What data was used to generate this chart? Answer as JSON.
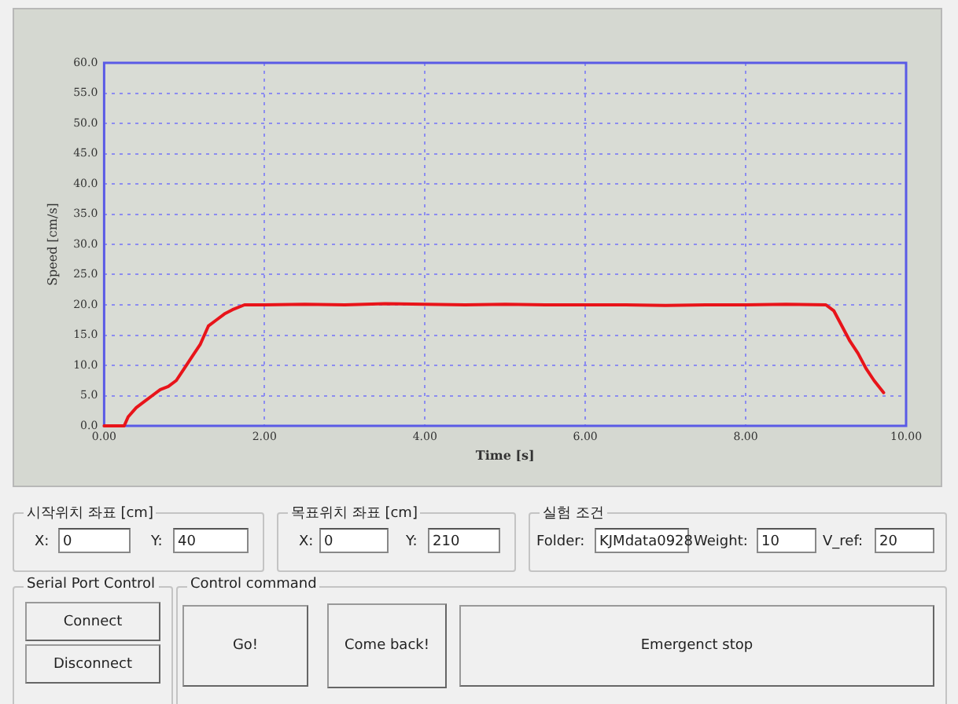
{
  "chart_data": {
    "type": "line",
    "xlabel": "Time [s]",
    "ylabel": "Speed [cm/s]",
    "x": [
      0,
      0.25,
      0.3,
      0.4,
      0.5,
      0.6,
      0.7,
      0.8,
      0.9,
      1.0,
      1.1,
      1.2,
      1.3,
      1.4,
      1.5,
      1.6,
      1.75,
      2.0,
      2.5,
      3.0,
      3.5,
      4.0,
      4.5,
      5.0,
      5.5,
      6.0,
      6.5,
      7.0,
      7.5,
      8.0,
      8.5,
      9.0,
      9.1,
      9.2,
      9.3,
      9.4,
      9.5,
      9.6,
      9.72
    ],
    "series": [
      {
        "color": "#e8141a",
        "values": [
          0,
          0,
          1.5,
          3,
          4,
          5,
          6,
          6.5,
          7.5,
          9.5,
          11.5,
          13.5,
          16.5,
          17.5,
          18.5,
          19.2,
          20,
          20,
          20.1,
          20,
          20.2,
          20.1,
          20,
          20.1,
          20,
          20,
          20,
          19.9,
          20,
          20,
          20.1,
          20,
          19,
          16.5,
          14,
          12,
          9.5,
          7.5,
          5.5
        ]
      }
    ],
    "xlim": [
      0,
      10
    ],
    "xticks": [
      {
        "value": 0,
        "label": "0.00"
      },
      {
        "value": 2,
        "label": "2.00"
      },
      {
        "value": 4,
        "label": "4.00"
      },
      {
        "value": 6,
        "label": "6.00"
      },
      {
        "value": 8,
        "label": "8.00"
      },
      {
        "value": 10,
        "label": "10.00"
      }
    ],
    "ylim": [
      0,
      60
    ],
    "yticks": [
      {
        "value": 0,
        "label": "0.0"
      },
      {
        "value": 5,
        "label": "5.0"
      },
      {
        "value": 10,
        "label": "10.0"
      },
      {
        "value": 15,
        "label": "15.0"
      },
      {
        "value": 20,
        "label": "20.0"
      },
      {
        "value": 25,
        "label": "25.0"
      },
      {
        "value": 30,
        "label": "30.0"
      },
      {
        "value": 35,
        "label": "35.0"
      },
      {
        "value": 40,
        "label": "40.0"
      },
      {
        "value": 45,
        "label": "45.0"
      },
      {
        "value": 50,
        "label": "50.0"
      },
      {
        "value": 55,
        "label": "55.0"
      },
      {
        "value": 60,
        "label": "60.0"
      }
    ],
    "grid": true,
    "legend": false,
    "marker": "none",
    "line_style": "solid",
    "annotations": [
      "시작위치 좌표 [cm]",
      "X:",
      "0",
      "Y:",
      "40",
      "목표위치 좌표 [cm]",
      "X:",
      "0",
      "Y:",
      "210",
      "실험 조건",
      "Folder:",
      "KJMdata0928",
      "Weight:",
      "10",
      "V_ref:",
      "20",
      "Serial Port Control",
      "Connect",
      "Disconnect",
      "Control command",
      "Go!",
      "Come back!",
      "Emergenct stop"
    ]
  }
}
